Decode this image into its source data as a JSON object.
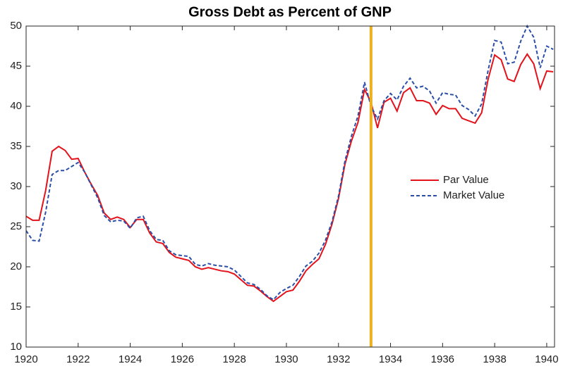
{
  "chart_data": {
    "type": "line",
    "title": "Gross Debt as Percent of GNP",
    "x": [
      1920,
      1920.25,
      1920.5,
      1920.75,
      1921,
      1921.25,
      1921.5,
      1921.75,
      1922,
      1922.25,
      1922.5,
      1922.75,
      1923,
      1923.25,
      1923.5,
      1923.75,
      1924,
      1924.25,
      1924.5,
      1924.75,
      1925,
      1925.25,
      1925.5,
      1925.75,
      1926,
      1926.25,
      1926.5,
      1926.75,
      1927,
      1927.25,
      1927.5,
      1927.75,
      1928,
      1928.25,
      1928.5,
      1928.75,
      1929,
      1929.25,
      1929.5,
      1929.75,
      1930,
      1930.25,
      1930.5,
      1930.75,
      1931,
      1931.25,
      1931.5,
      1931.75,
      1932,
      1932.25,
      1932.5,
      1932.75,
      1933,
      1933.25,
      1933.5,
      1933.75,
      1934,
      1934.25,
      1934.5,
      1934.75,
      1935,
      1935.25,
      1935.5,
      1935.75,
      1936,
      1936.25,
      1936.5,
      1936.75,
      1937,
      1937.25,
      1937.5,
      1937.75,
      1938,
      1938.25,
      1938.5,
      1938.75,
      1939,
      1939.25,
      1939.5,
      1939.75,
      1940,
      1940.25
    ],
    "series": [
      {
        "name": "Par Value",
        "color": "#e3121b",
        "line_style": "solid",
        "values": [
          26.3,
          25.8,
          25.8,
          29.5,
          34.4,
          35.0,
          34.5,
          33.4,
          33.5,
          31.8,
          30.3,
          28.9,
          26.7,
          25.9,
          26.2,
          25.9,
          24.9,
          25.9,
          25.9,
          24.2,
          23.1,
          22.9,
          21.8,
          21.2,
          21.0,
          20.8,
          20.0,
          19.7,
          19.9,
          19.7,
          19.5,
          19.4,
          19.1,
          18.4,
          17.7,
          17.6,
          17.0,
          16.3,
          15.7,
          16.3,
          16.9,
          17.1,
          18.2,
          19.5,
          20.3,
          21.0,
          22.8,
          25.3,
          28.5,
          32.8,
          35.7,
          38.0,
          42.1,
          40.5,
          37.3,
          40.5,
          41.0,
          39.4,
          41.7,
          42.3,
          40.7,
          40.7,
          40.4,
          39.0,
          40.1,
          39.7,
          39.7,
          38.5,
          38.2,
          37.9,
          39.2,
          43.4,
          46.4,
          45.8,
          43.4,
          43.1,
          45.2,
          46.5,
          45.3,
          42.2,
          44.4,
          44.3
        ]
      },
      {
        "name": "Market Value",
        "color": "#2b4fa8",
        "line_style": "dashed",
        "values": [
          24.5,
          23.3,
          23.2,
          26.8,
          31.5,
          32.0,
          32.0,
          32.5,
          33.0,
          31.8,
          30.2,
          28.6,
          26.4,
          25.6,
          25.8,
          25.7,
          24.8,
          26.1,
          26.3,
          24.5,
          23.4,
          23.3,
          22.0,
          21.5,
          21.4,
          21.3,
          20.3,
          20.1,
          20.4,
          20.2,
          20.1,
          20.0,
          19.6,
          18.8,
          18.0,
          17.8,
          17.2,
          16.4,
          15.9,
          16.8,
          17.3,
          17.7,
          18.8,
          20.1,
          20.7,
          21.7,
          23.3,
          25.6,
          28.8,
          33.2,
          36.3,
          38.8,
          43.0,
          40.0,
          38.4,
          40.7,
          41.6,
          40.8,
          42.5,
          43.5,
          42.3,
          42.5,
          41.9,
          40.4,
          41.7,
          41.5,
          41.4,
          40.1,
          39.6,
          38.8,
          40.3,
          44.5,
          48.2,
          48.0,
          45.3,
          45.5,
          48.1,
          50.0,
          48.6,
          44.8,
          47.5,
          47.1
        ]
      }
    ],
    "reference_line": {
      "x": 1933.25,
      "color": "#edb120"
    },
    "xlim": [
      1920,
      1940.3
    ],
    "xticks": [
      1920,
      1922,
      1924,
      1926,
      1928,
      1930,
      1932,
      1934,
      1936,
      1938,
      1940
    ],
    "ylim": [
      10,
      50
    ],
    "yticks": [
      10,
      15,
      20,
      25,
      30,
      35,
      40,
      45,
      50
    ],
    "grid": false,
    "legend": "right"
  }
}
